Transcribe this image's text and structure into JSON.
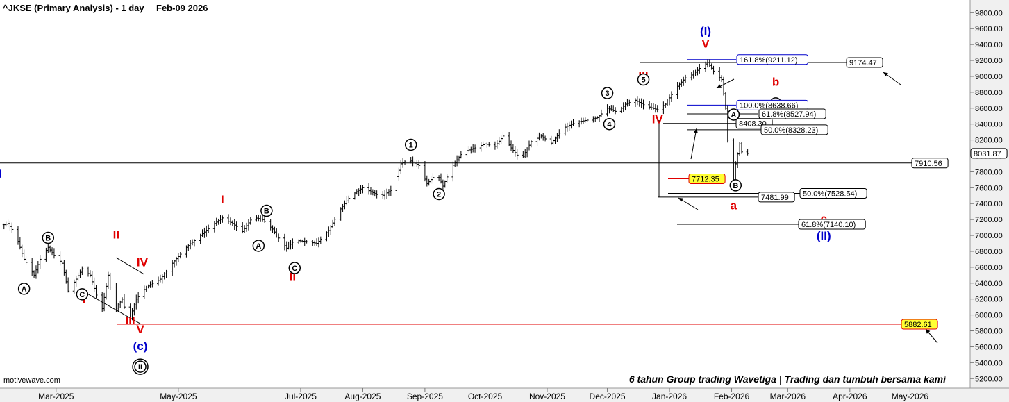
{
  "header": {
    "symbol": "^JKSE (Primary Analysis) - 1 day",
    "date": "Feb-09 2026"
  },
  "footer": {
    "brand": "motivewave.com",
    "tagline": "6 tahun Group trading Wavetiga | Trading dan tumbuh bersama kami"
  },
  "colors": {
    "background": "#ffffff",
    "panel": "#f0f0f0",
    "price_bar": "#000000",
    "wave_red": "#e00000",
    "wave_blue": "#0000cc",
    "highlight_box": "#ffff33",
    "highlight_border": "#e00000"
  },
  "chart_data": {
    "type": "ohlc",
    "instrument": "^JKSE",
    "timeframe": "1 day",
    "y_axis": {
      "ticks": [
        "5200.00",
        "5400.00",
        "5600.00",
        "5800.00",
        "6000.00",
        "6200.00",
        "6400.00",
        "6600.00",
        "6800.00",
        "7000.00",
        "7200.00",
        "7400.00",
        "7600.00",
        "7800.00",
        "8000.00",
        "8200.00",
        "8400.00",
        "8600.00",
        "8800.00",
        "9000.00",
        "9200.00",
        "9400.00",
        "9600.00",
        "9800.00"
      ],
      "range": [
        5080,
        9960
      ]
    },
    "x_axis": {
      "ticks": [
        "Mar-2025",
        "May-2025",
        "Jul-2025",
        "Aug-2025",
        "Sep-2025",
        "Oct-2025",
        "Nov-2025",
        "Dec-2025",
        "Jan-2026",
        "Feb-2026",
        "Mar-2026",
        "Apr-2026",
        "May-2026"
      ],
      "range": [
        "2025-02-01",
        "2026-05-31"
      ]
    },
    "price_path": [
      [
        "2025-02-01",
        7120
      ],
      [
        "2025-02-05",
        7150
      ],
      [
        "2025-02-09",
        7000
      ],
      [
        "2025-02-13",
        6700
      ],
      [
        "2025-02-18",
        6500
      ],
      [
        "2025-02-21",
        6700
      ],
      [
        "2025-02-25",
        6850
      ],
      [
        "2025-02-28",
        6750
      ],
      [
        "2025-03-04",
        6650
      ],
      [
        "2025-03-07",
        6300
      ],
      [
        "2025-03-11",
        6450
      ],
      [
        "2025-03-14",
        6580
      ],
      [
        "2025-03-18",
        6500
      ],
      [
        "2025-03-21",
        6250
      ],
      [
        "2025-03-24",
        6080
      ],
      [
        "2025-03-27",
        6500
      ],
      [
        "2025-03-30",
        6050
      ],
      [
        "2025-04-03",
        6200
      ],
      [
        "2025-04-06",
        5900
      ],
      [
        "2025-04-10",
        6200
      ],
      [
        "2025-04-15",
        6350
      ],
      [
        "2025-04-22",
        6450
      ],
      [
        "2025-04-28",
        6650
      ],
      [
        "2025-05-05",
        6850
      ],
      [
        "2025-05-12",
        7000
      ],
      [
        "2025-05-19",
        7150
      ],
      [
        "2025-05-23",
        7220
      ],
      [
        "2025-05-28",
        7150
      ],
      [
        "2025-06-02",
        7050
      ],
      [
        "2025-06-07",
        7230
      ],
      [
        "2025-06-12",
        7200
      ],
      [
        "2025-06-17",
        7080
      ],
      [
        "2025-06-21",
        6930
      ],
      [
        "2025-06-24",
        6840
      ],
      [
        "2025-06-28",
        6940
      ],
      [
        "2025-07-04",
        6920
      ],
      [
        "2025-07-09",
        6900
      ],
      [
        "2025-07-15",
        7060
      ],
      [
        "2025-07-20",
        7300
      ],
      [
        "2025-07-26",
        7500
      ],
      [
        "2025-08-01",
        7600
      ],
      [
        "2025-08-05",
        7550
      ],
      [
        "2025-08-10",
        7490
      ],
      [
        "2025-08-16",
        7580
      ],
      [
        "2025-08-20",
        7900
      ],
      [
        "2025-08-24",
        7950
      ],
      [
        "2025-08-29",
        7880
      ],
      [
        "2025-09-02",
        7650
      ],
      [
        "2025-09-07",
        7780
      ],
      [
        "2025-09-10",
        7620
      ],
      [
        "2025-09-14",
        7850
      ],
      [
        "2025-09-20",
        8050
      ],
      [
        "2025-09-26",
        8100
      ],
      [
        "2025-10-01",
        8150
      ],
      [
        "2025-10-06",
        8120
      ],
      [
        "2025-10-10",
        8250
      ],
      [
        "2025-10-14",
        8100
      ],
      [
        "2025-10-19",
        7950
      ],
      [
        "2025-10-24",
        8180
      ],
      [
        "2025-10-29",
        8250
      ],
      [
        "2025-11-03",
        8160
      ],
      [
        "2025-11-09",
        8350
      ],
      [
        "2025-11-15",
        8420
      ],
      [
        "2025-11-21",
        8450
      ],
      [
        "2025-11-26",
        8480
      ],
      [
        "2025-12-01",
        8600
      ],
      [
        "2025-12-06",
        8550
      ],
      [
        "2025-12-10",
        8650
      ],
      [
        "2025-12-15",
        8700
      ],
      [
        "2025-12-20",
        8630
      ],
      [
        "2025-12-26",
        8580
      ],
      [
        "2025-12-30",
        8650
      ],
      [
        "2026-01-04",
        8850
      ],
      [
        "2026-01-09",
        8980
      ],
      [
        "2026-01-13",
        9030
      ],
      [
        "2026-01-16",
        9100
      ],
      [
        "2026-01-20",
        9174
      ],
      [
        "2026-01-24",
        9030
      ],
      [
        "2026-01-27",
        8960
      ],
      [
        "2026-01-29",
        8600
      ],
      [
        "2026-01-30",
        8200
      ],
      [
        "2026-02-01",
        7500
      ],
      [
        "2026-02-03",
        7900
      ],
      [
        "2026-02-05",
        8150
      ],
      [
        "2026-02-07",
        7950
      ],
      [
        "2026-02-09",
        8031
      ]
    ],
    "wave_labels": [
      {
        "text": "(I)",
        "date": "2026-01-19",
        "price": 9520,
        "color": "blue"
      },
      {
        "text": "V",
        "date": "2026-01-19",
        "price": 9360,
        "color": "red"
      },
      {
        "text": "III",
        "date": "2025-12-19",
        "price": 8950,
        "color": "red"
      },
      {
        "text": "IV",
        "date": "2025-12-26",
        "price": 8410,
        "color": "red"
      },
      {
        "text": "I",
        "date": "2025-05-23",
        "price": 7400,
        "color": "red"
      },
      {
        "text": "II",
        "date": "2025-06-27",
        "price": 6430,
        "color": "red"
      },
      {
        "text": "I",
        "date": "2025-03-15",
        "price": 6150,
        "color": "red"
      },
      {
        "text": "II",
        "date": "2025-03-31",
        "price": 6960,
        "color": "red"
      },
      {
        "text": "IV",
        "date": "2025-04-13",
        "price": 6610,
        "color": "red"
      },
      {
        "text": "III",
        "date": "2025-04-07",
        "price": 5880,
        "color": "red"
      },
      {
        "text": "V",
        "date": "2025-04-12",
        "price": 5770,
        "color": "red"
      },
      {
        "text": "(c)",
        "date": "2025-04-12",
        "price": 5560,
        "color": "blue"
      },
      {
        "text": "b",
        "date": "2026-02-23",
        "price": 8880,
        "color": "red"
      },
      {
        "text": "a",
        "date": "2026-02-02",
        "price": 7330,
        "color": "red"
      },
      {
        "text": "c",
        "date": "2026-03-19",
        "price": 7160,
        "color": "red"
      },
      {
        "text": "(II)",
        "date": "2026-03-19",
        "price": 6950,
        "color": "blue"
      },
      {
        "text": ")",
        "date": "2025-02-01",
        "price": 7740,
        "color": "blue"
      }
    ],
    "circled_labels": [
      {
        "text": "A",
        "date": "2025-02-13",
        "price": 6330
      },
      {
        "text": "B",
        "date": "2025-02-25",
        "price": 6970
      },
      {
        "text": "C",
        "date": "2025-03-14",
        "price": 6260
      },
      {
        "text": "II",
        "date": "2025-04-12",
        "price": 5350,
        "double": true
      },
      {
        "text": "A",
        "date": "2025-06-10",
        "price": 6870
      },
      {
        "text": "B",
        "date": "2025-06-14",
        "price": 7310
      },
      {
        "text": "C",
        "date": "2025-06-28",
        "price": 6590
      },
      {
        "text": "1",
        "date": "2025-08-25",
        "price": 8140
      },
      {
        "text": "2",
        "date": "2025-09-08",
        "price": 7520
      },
      {
        "text": "3",
        "date": "2025-12-01",
        "price": 8790
      },
      {
        "text": "4",
        "date": "2025-12-02",
        "price": 8400
      },
      {
        "text": "5",
        "date": "2025-12-19",
        "price": 8960
      },
      {
        "text": "A",
        "date": "2026-02-02",
        "price": 8520
      },
      {
        "text": "B",
        "date": "2026-02-03",
        "price": 7630
      },
      {
        "text": "C",
        "date": "2026-02-23",
        "price": 8660
      }
    ],
    "levels": [
      {
        "text": "161.8%(9211.12)",
        "value": 9211.12,
        "color": "blue"
      },
      {
        "text": "9174.47",
        "value": 9174.47,
        "color": "black"
      },
      {
        "text": "100.0%(8638.66)",
        "value": 8638.66,
        "color": "blue"
      },
      {
        "text": "61.8%(8527.94)",
        "value": 8527.94,
        "color": "black"
      },
      {
        "text": "8408.30",
        "value": 8408.3,
        "color": "black"
      },
      {
        "text": "50.0%(8328.23)",
        "value": 8328.23,
        "color": "black"
      },
      {
        "text": "8031.87",
        "value": 8031.87,
        "color": "black"
      },
      {
        "text": "7910.56",
        "value": 7910.56,
        "color": "black"
      },
      {
        "text": "7712.35",
        "value": 7712.35,
        "color": "yellow"
      },
      {
        "text": "50.0%(7528.54)",
        "value": 7528.54,
        "color": "black"
      },
      {
        "text": "7481.99",
        "value": 7481.99,
        "color": "black"
      },
      {
        "text": "61.8%(7140.10)",
        "value": 7140.1,
        "color": "black"
      },
      {
        "text": "5882.61",
        "value": 5882.61,
        "color": "yellow"
      }
    ]
  }
}
